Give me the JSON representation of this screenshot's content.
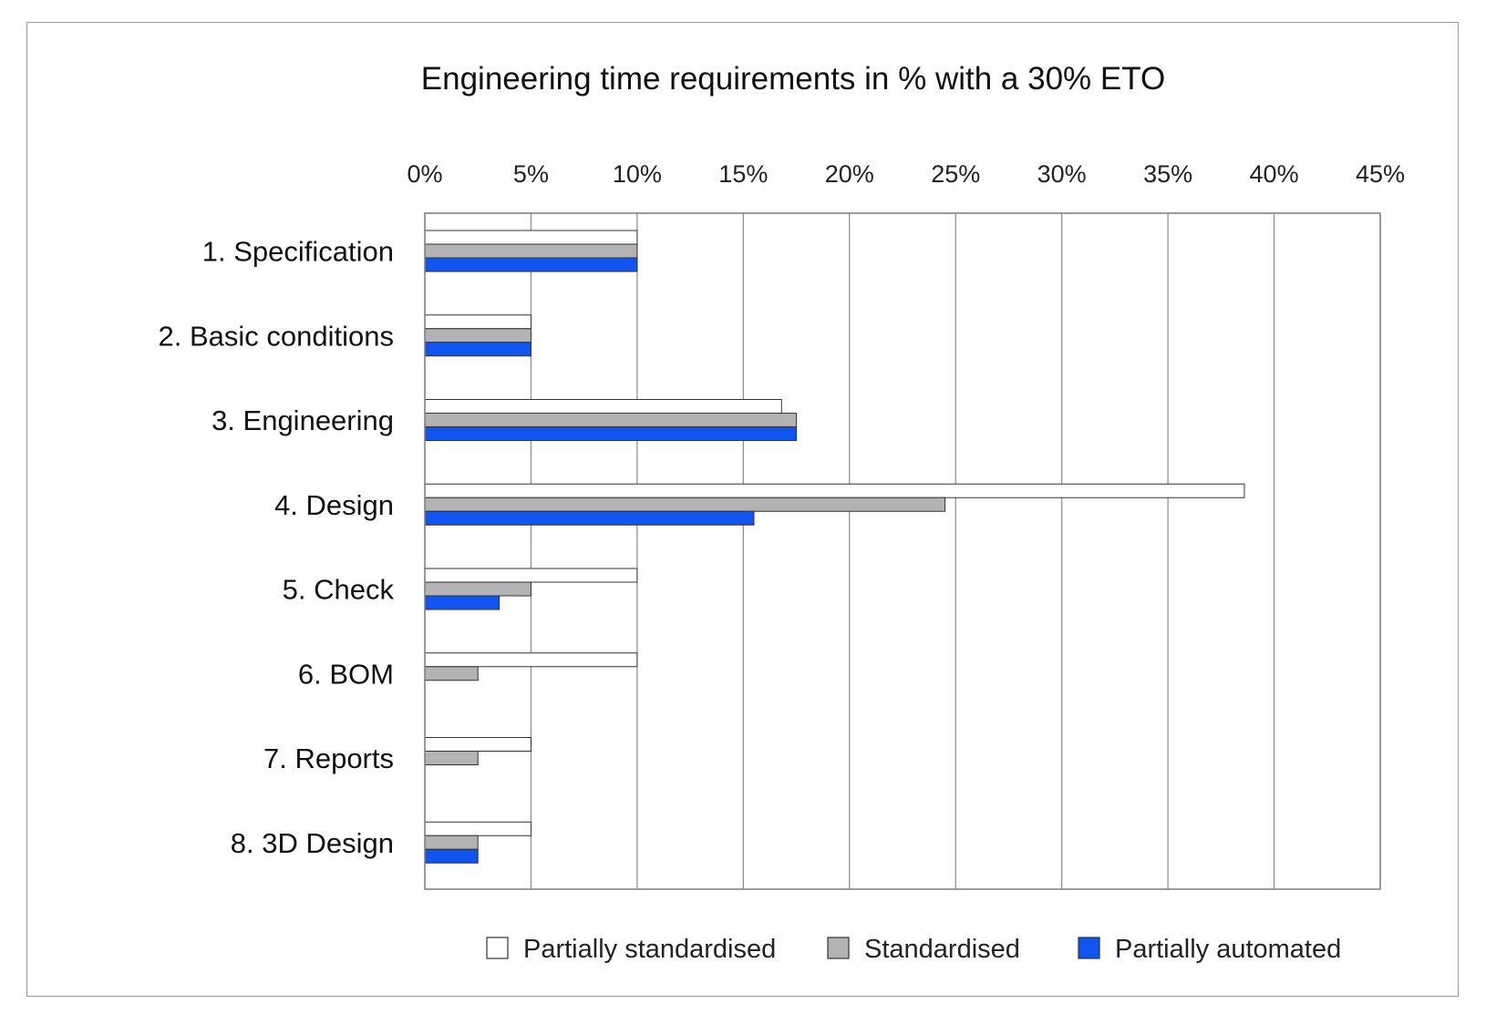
{
  "chart_data": {
    "type": "bar",
    "orientation": "horizontal",
    "title": "Engineering time requirements in % with a 30% ETO",
    "xlabel": "",
    "ylabel": "",
    "x_axis_position": "top",
    "xlim": [
      0,
      45
    ],
    "x_ticks": [
      "0%",
      "5%",
      "10%",
      "15%",
      "20%",
      "25%",
      "30%",
      "35%",
      "40%",
      "45%"
    ],
    "grid": true,
    "legend_position": "bottom",
    "categories": [
      "1. Specification",
      "2. Basic conditions",
      "3. Engineering",
      "4. Design",
      "5. Check",
      "6. BOM",
      "7. Reports",
      "8. 3D Design"
    ],
    "series": [
      {
        "name": "Partially standardised",
        "color": "#ffffff",
        "values": [
          10,
          5,
          16.8,
          38.6,
          10,
          10,
          5,
          5
        ]
      },
      {
        "name": "Standardised",
        "color": "#b3b3b3",
        "values": [
          10,
          5,
          17.5,
          24.5,
          5,
          2.5,
          2.5,
          2.5
        ]
      },
      {
        "name": "Partially automated",
        "color": "#1155f0",
        "values": [
          10,
          5,
          17.5,
          15.5,
          3.5,
          0,
          0,
          2.5
        ]
      }
    ]
  }
}
